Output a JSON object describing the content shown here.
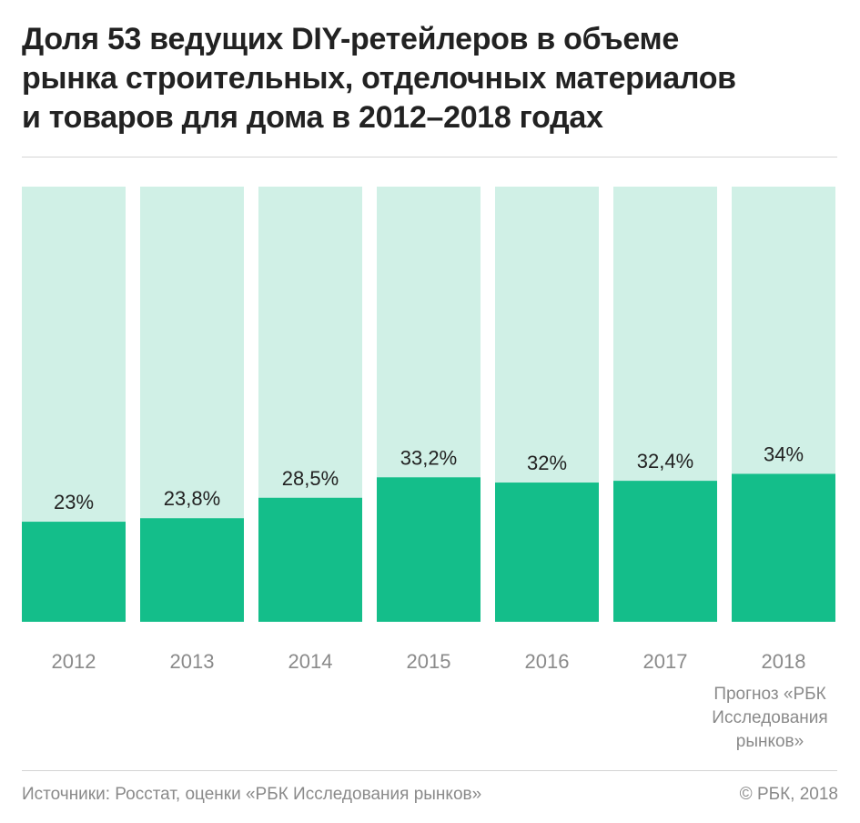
{
  "title": "Доля 53 ведущих DIY-ретейлеров в объеме\nрынка строительных, отделочных материалов\nи товаров для дома в 2012–2018 годах",
  "chart_data": {
    "type": "bar",
    "stacked_to_100": true,
    "categories": [
      "2012",
      "2013",
      "2014",
      "2015",
      "2016",
      "2017",
      "2018"
    ],
    "values": [
      23,
      23.8,
      28.5,
      33.2,
      32,
      32.4,
      34
    ],
    "data_labels": [
      "23%",
      "23,8%",
      "28,5%",
      "33,2%",
      "32%",
      "32,4%",
      "34%"
    ],
    "ylim": [
      0,
      100
    ],
    "grid": false,
    "legend": "none",
    "colors": {
      "value": "#14be8a",
      "remainder": "#d0f0e6",
      "label": "#222222",
      "tick": "#8a8a8a"
    }
  },
  "note": "Прогноз «РБК\nИсследования\nрынков»",
  "footer": {
    "source": "Источники: Росстат, оценки «РБК Исследования рынков»",
    "copyright": "© РБК, 2018"
  }
}
